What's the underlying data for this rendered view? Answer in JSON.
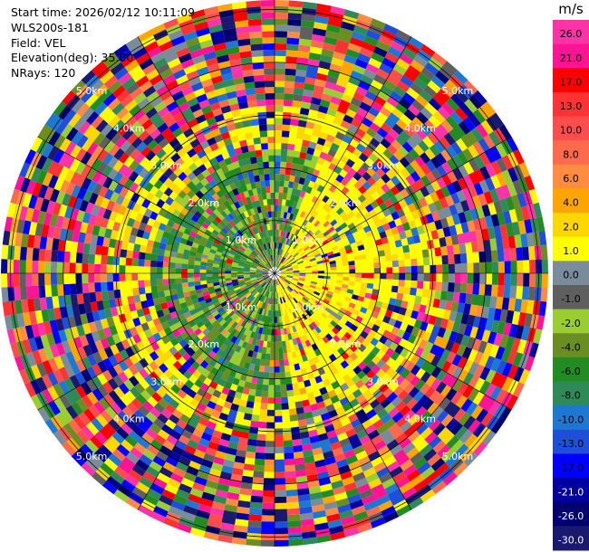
{
  "header": {
    "start_time": "Start time: 2026/02/12 10:11:09",
    "instrument": "WLS200s-181",
    "field": "Field: VEL",
    "elevation": "Elevation(deg): 35.00",
    "nrays": "NRays: 120"
  },
  "colorbar": {
    "unit": "m/s",
    "ticks": [
      "26.0",
      "21.0",
      "17.0",
      "13.0",
      "10.0",
      "8.0",
      "6.0",
      "4.0",
      "2.0",
      "1.0",
      "0.0",
      "-1.0",
      "-2.0",
      "-4.0",
      "-6.0",
      "-8.0",
      "-10.0",
      "-13.0",
      "-17.0",
      "-21.0",
      "-26.0",
      "-30.0"
    ],
    "colors": [
      "#ff33a8",
      "#ff1493",
      "#ff0000",
      "#ff3333",
      "#ff4d4d",
      "#ff6a4d",
      "#ff8c40",
      "#ffa500",
      "#ffd700",
      "#ffff00",
      "#7a8b99",
      "#5f5f5f",
      "#9acd32",
      "#6b8e23",
      "#228b22",
      "#2e8b57",
      "#1e78d2",
      "#1f4fd8",
      "#0000ff",
      "#0000a0",
      "#00006e",
      "#191970"
    ]
  },
  "chart_data": {
    "type": "heatmap",
    "title": "",
    "projection": "polar (PPI)",
    "field": "VEL",
    "unit": "m/s",
    "n_rays": 120,
    "value_range": [
      -30.0,
      26.0
    ],
    "range_rings": [
      {
        "label": "1.0km"
      },
      {
        "label": "2.0km"
      },
      {
        "label": "3.0km"
      },
      {
        "label": "4.0km"
      },
      {
        "label": "5.0km"
      }
    ],
    "spokes_deg": [
      0,
      30,
      60,
      90,
      120,
      150,
      180,
      210,
      240,
      270,
      300,
      330
    ],
    "grid": true
  }
}
